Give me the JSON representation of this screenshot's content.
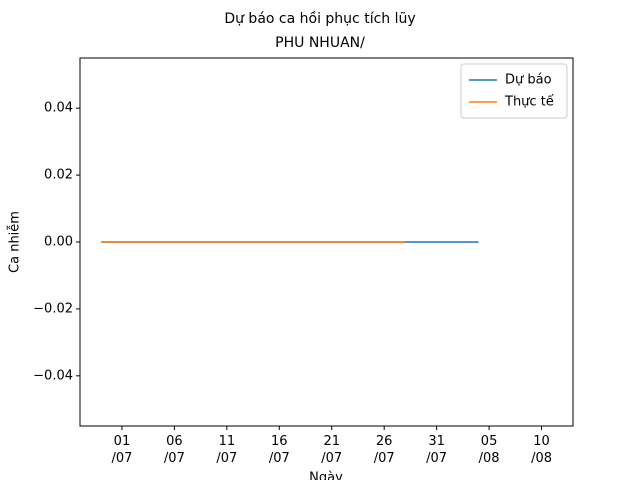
{
  "chart_data": {
    "type": "line",
    "title": "Dự báo ca hồi phục tích lũy",
    "subtitle": "PHU NHUAN/",
    "x_label": "Ngày",
    "y_label": "Ca nhiễm",
    "x": [
      "29/06",
      "30/06",
      "01/07",
      "02/07",
      "03/07",
      "04/07",
      "05/07",
      "06/07",
      "07/07",
      "08/07",
      "09/07",
      "10/07",
      "11/07",
      "12/07",
      "13/07",
      "14/07",
      "15/07",
      "16/07",
      "17/07",
      "18/07",
      "19/07",
      "20/07",
      "21/07",
      "22/07",
      "23/07",
      "24/07",
      "25/07",
      "26/07",
      "27/07",
      "28/07",
      "29/07",
      "30/07",
      "31/07",
      "01/08",
      "02/08",
      "03/08",
      "04/08"
    ],
    "series": [
      {
        "name": "Dự báo",
        "color": "#1f77b4",
        "values": [
          0,
          0,
          0,
          0,
          0,
          0,
          0,
          0,
          0,
          0,
          0,
          0,
          0,
          0,
          0,
          0,
          0,
          0,
          0,
          0,
          0,
          0,
          0,
          0,
          0,
          0,
          0,
          0,
          0,
          0,
          0,
          0,
          0,
          0,
          0,
          0,
          0
        ]
      },
      {
        "name": "Thực tế",
        "color": "#ff7f0e",
        "values": [
          0,
          0,
          0,
          0,
          0,
          0,
          0,
          0,
          0,
          0,
          0,
          0,
          0,
          0,
          0,
          0,
          0,
          0,
          0,
          0,
          0,
          0,
          0,
          0,
          0,
          0,
          0,
          0,
          0,
          0,
          null,
          null,
          null,
          null,
          null,
          null,
          null
        ]
      }
    ],
    "xlim": [
      "27/06",
      "13/08"
    ],
    "xticks": [
      {
        "value": "01/07",
        "label": "01\n/07"
      },
      {
        "value": "06/07",
        "label": "06\n/07"
      },
      {
        "value": "11/07",
        "label": "11\n/07"
      },
      {
        "value": "16/07",
        "label": "16\n/07"
      },
      {
        "value": "21/07",
        "label": "21\n/07"
      },
      {
        "value": "26/07",
        "label": "26\n/07"
      },
      {
        "value": "31/07",
        "label": "31\n/07"
      },
      {
        "value": "05/08",
        "label": "05\n/08"
      },
      {
        "value": "10/08",
        "label": "10\n/08"
      }
    ],
    "ylim": [
      -0.055,
      0.055
    ],
    "yticks": [
      {
        "value": -0.04,
        "label": "−0.04"
      },
      {
        "value": -0.02,
        "label": "−0.02"
      },
      {
        "value": 0,
        "label": "0.00"
      },
      0.02,
      0.04
    ],
    "legend": "upper right"
  }
}
